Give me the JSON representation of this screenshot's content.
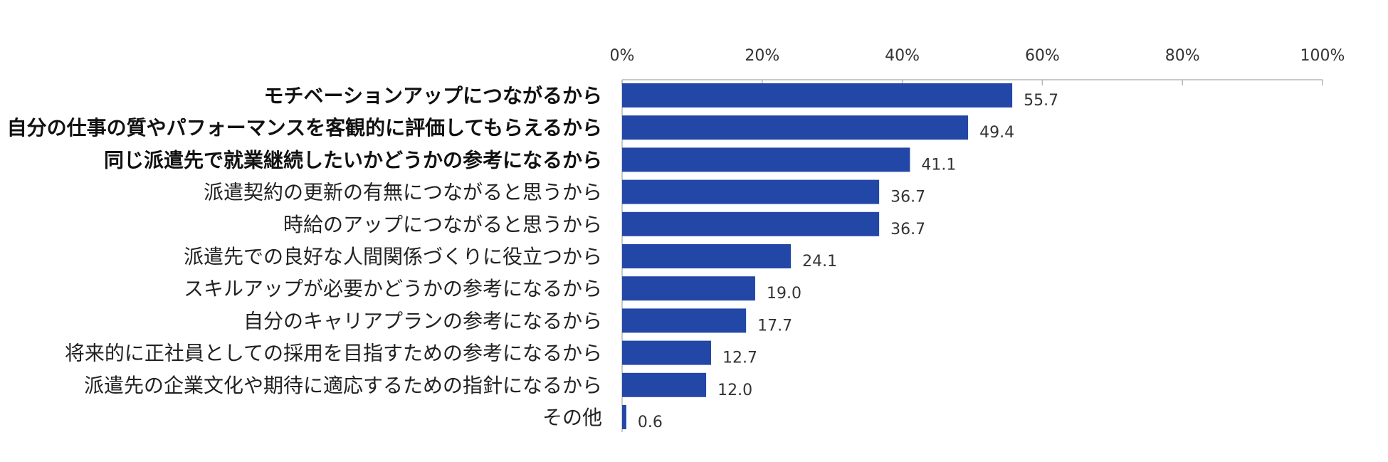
{
  "chart_data": {
    "type": "bar",
    "orientation": "horizontal",
    "title": "",
    "xlabel": "",
    "ylabel": "",
    "xlim": [
      0,
      100
    ],
    "ticks": [
      0,
      20,
      40,
      60,
      80,
      100
    ],
    "tick_labels": [
      "0%",
      "20%",
      "40%",
      "60%",
      "80%",
      "100%"
    ],
    "bar_color": "#2347a6",
    "grid": false,
    "categories": [
      {
        "label": "モチベーションアップにつながるから",
        "value": 55.7,
        "value_label": "55.7",
        "bold": true
      },
      {
        "label": "自分の仕事の質やパフォーマンスを客観的に評価してもらえるから",
        "value": 49.4,
        "value_label": "49.4",
        "bold": true
      },
      {
        "label": "同じ派遣先で就業継続したいかどうかの参考になるから",
        "value": 41.1,
        "value_label": "41.1",
        "bold": true
      },
      {
        "label": "派遣契約の更新の有無につながると思うから",
        "value": 36.7,
        "value_label": "36.7",
        "bold": false
      },
      {
        "label": "時給のアップにつながると思うから",
        "value": 36.7,
        "value_label": "36.7",
        "bold": false
      },
      {
        "label": "派遣先での良好な人間関係づくりに役立つから",
        "value": 24.1,
        "value_label": "24.1",
        "bold": false
      },
      {
        "label": "スキルアップが必要かどうかの参考になるから",
        "value": 19.0,
        "value_label": "19.0",
        "bold": false
      },
      {
        "label": "自分のキャリアプランの参考になるから",
        "value": 17.7,
        "value_label": "17.7",
        "bold": false
      },
      {
        "label": "将来的に正社員としての採用を目指すための参考になるから",
        "value": 12.7,
        "value_label": "12.7",
        "bold": false
      },
      {
        "label": "派遣先の企業文化や期待に適応するための指針になるから",
        "value": 12.0,
        "value_label": "12.0",
        "bold": false
      },
      {
        "label": "その他",
        "value": 0.6,
        "value_label": "0.6",
        "bold": false
      }
    ]
  }
}
